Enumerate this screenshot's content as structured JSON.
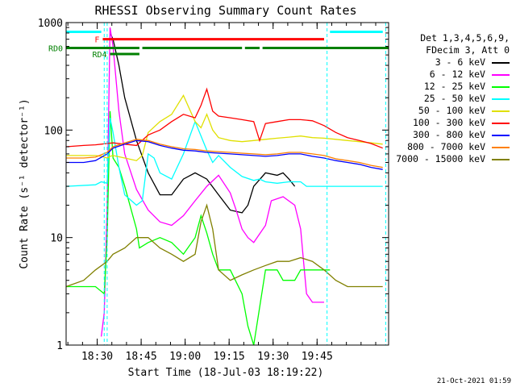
{
  "chart_data": {
    "type": "line",
    "title": "RHESSI Observing Summary Count Rates",
    "xlabel": "Start Time (18-Jul-03 18:19:22)",
    "ylabel": "Count Rate (s⁻¹ detector⁻¹)",
    "yscale": "log",
    "ylim": [
      1,
      1000
    ],
    "xlim_minutes": [
      0,
      110
    ],
    "x_unit": "minutes after 18:19:22",
    "ytick_labels": [
      "1",
      "10",
      "100",
      "1000"
    ],
    "xtick_labels": [
      "18:30",
      "18:45",
      "19:00",
      "19:15",
      "19:30",
      "19:45"
    ],
    "xtick_minutes": [
      10.6,
      25.6,
      40.6,
      55.6,
      70.6,
      85.6
    ],
    "legend_header": [
      "Det 1,3,4,5,6,9,",
      "FDecim 3, Att 0"
    ],
    "series": [
      {
        "name": "3 - 6 keV",
        "color": "#000000",
        "x": [
          0,
          8,
          10,
          12,
          14,
          15,
          16,
          18,
          20,
          24,
          28,
          32,
          36,
          40,
          44,
          48,
          52,
          56,
          60,
          62,
          64,
          68,
          72,
          74,
          76,
          78
        ],
        "y": [
          null,
          null,
          null,
          null,
          null,
          800,
          700,
          400,
          200,
          80,
          40,
          25,
          25,
          35,
          40,
          35,
          25,
          18,
          17,
          20,
          30,
          40,
          38,
          40,
          35,
          30
        ]
      },
      {
        "name": "6 - 12 keV",
        "color": "#ff00ff",
        "x": [
          0,
          10,
          12,
          13,
          14,
          15,
          16,
          18,
          20,
          24,
          28,
          32,
          36,
          40,
          44,
          48,
          52,
          56,
          58,
          60,
          62,
          64,
          68,
          70,
          74,
          78,
          80,
          81,
          82,
          84,
          88,
          90
        ],
        "y": [
          null,
          null,
          1.2,
          2,
          20,
          900,
          600,
          150,
          60,
          28,
          18,
          14,
          13,
          16,
          22,
          30,
          38,
          26,
          18,
          12,
          10,
          9,
          13,
          22,
          24,
          20,
          12,
          6,
          3,
          2.5,
          2.5,
          null
        ]
      },
      {
        "name": "12 - 25 keV",
        "color": "#00ff00",
        "x": [
          0,
          10,
          13,
          14,
          15,
          16,
          18,
          20,
          24,
          25,
          28,
          32,
          36,
          40,
          44,
          46,
          48,
          50,
          52,
          56,
          60,
          62,
          64,
          68,
          72,
          74,
          78,
          80,
          82,
          84,
          86,
          88,
          90
        ],
        "y": [
          3.5,
          3.5,
          3,
          10,
          150,
          55,
          45,
          30,
          12,
          8,
          9,
          10,
          9,
          7,
          10,
          16,
          11,
          7,
          5,
          5,
          3,
          1.5,
          1,
          5,
          5,
          4,
          4,
          5,
          5,
          5,
          5,
          5,
          5
        ]
      },
      {
        "name": "25 - 50 keV",
        "color": "#00ffff",
        "x": [
          0,
          10,
          12,
          14,
          15,
          16,
          18,
          20,
          24,
          26,
          28,
          30,
          32,
          36,
          40,
          44,
          48,
          50,
          52,
          56,
          60,
          64,
          66,
          68,
          72,
          76,
          80,
          82,
          84,
          86,
          88,
          92,
          96,
          100,
          104,
          108
        ],
        "y": [
          30,
          31,
          33,
          32,
          130,
          95,
          45,
          25,
          20,
          22,
          60,
          55,
          40,
          35,
          60,
          120,
          65,
          50,
          58,
          45,
          37,
          34,
          35,
          33,
          32,
          33,
          33,
          30,
          30,
          30,
          30,
          30,
          30,
          30,
          30,
          30
        ]
      },
      {
        "name": "50 - 100 keV",
        "color": "#e0e000",
        "x": [
          0,
          10,
          12,
          14,
          15,
          16,
          20,
          24,
          26,
          28,
          32,
          36,
          40,
          44,
          46,
          48,
          50,
          52,
          56,
          60,
          64,
          68,
          72,
          76,
          80,
          84,
          88,
          92,
          96,
          100,
          104,
          108
        ],
        "y": [
          58,
          58,
          57,
          55,
          57,
          58,
          55,
          52,
          58,
          95,
          120,
          140,
          210,
          120,
          105,
          140,
          100,
          85,
          80,
          78,
          80,
          82,
          84,
          86,
          88,
          85,
          84,
          82,
          80,
          78,
          76,
          74
        ]
      },
      {
        "name": "100 - 300 keV",
        "color": "#ff0000",
        "x": [
          0,
          6,
          10,
          14,
          16,
          20,
          24,
          28,
          30,
          32,
          36,
          40,
          44,
          46,
          48,
          50,
          52,
          56,
          60,
          64,
          66,
          68,
          72,
          76,
          80,
          84,
          88,
          92,
          96,
          100,
          104,
          108
        ],
        "y": [
          70,
          72,
          73,
          75,
          76,
          74,
          72,
          90,
          95,
          100,
          120,
          140,
          130,
          170,
          240,
          150,
          135,
          130,
          125,
          120,
          80,
          115,
          120,
          125,
          125,
          122,
          110,
          95,
          85,
          80,
          75,
          68
        ]
      },
      {
        "name": "300 - 800 keV",
        "color": "#0000ff",
        "x": [
          0,
          6,
          10,
          14,
          16,
          20,
          24,
          28,
          32,
          36,
          40,
          44,
          48,
          52,
          56,
          60,
          64,
          68,
          72,
          76,
          80,
          84,
          88,
          92,
          96,
          100,
          104,
          108
        ],
        "y": [
          50,
          50,
          52,
          60,
          68,
          74,
          80,
          78,
          72,
          68,
          65,
          64,
          62,
          61,
          60,
          59,
          58,
          57,
          58,
          60,
          60,
          57,
          55,
          52,
          50,
          48,
          45,
          43
        ]
      },
      {
        "name": "800 - 7000 keV",
        "color": "#ff8000",
        "x": [
          0,
          6,
          10,
          14,
          16,
          20,
          24,
          28,
          32,
          36,
          40,
          44,
          48,
          52,
          56,
          60,
          64,
          68,
          72,
          76,
          80,
          84,
          88,
          92,
          96,
          100,
          104,
          108
        ],
        "y": [
          55,
          55,
          56,
          62,
          70,
          76,
          82,
          80,
          74,
          70,
          67,
          66,
          64,
          63,
          62,
          61,
          60,
          59,
          60,
          62,
          62,
          60,
          58,
          54,
          52,
          50,
          47,
          45
        ]
      },
      {
        "name": "7000 - 15000 keV",
        "color": "#808000",
        "x": [
          0,
          6,
          10,
          14,
          16,
          20,
          24,
          28,
          32,
          36,
          40,
          44,
          46,
          48,
          50,
          52,
          56,
          60,
          64,
          68,
          72,
          76,
          80,
          84,
          88,
          92,
          96,
          100,
          104,
          108
        ],
        "y": [
          3.5,
          4,
          5,
          6,
          7,
          8,
          10,
          10,
          8,
          7,
          6,
          7,
          14,
          20,
          12,
          5,
          4,
          4.5,
          5,
          5.5,
          6,
          6,
          6.5,
          6,
          5,
          4,
          3.5,
          3.5,
          3.5,
          3.5
        ]
      }
    ],
    "flag_bars": [
      {
        "label": "",
        "color": "#00ffff",
        "y": 820,
        "x_start": 0,
        "x_end": 12
      },
      {
        "label": "",
        "color": "#00ffff",
        "y": 820,
        "x_start": 90,
        "x_end": 108
      },
      {
        "label": "F",
        "color": "#ff0000",
        "y": 700,
        "x_start": 12.5,
        "x_end": 88
      },
      {
        "label": "RD0",
        "color": "#008000",
        "y": 580,
        "x_start": 0,
        "x_end": 25
      },
      {
        "label": "",
        "color": "#008000",
        "y": 580,
        "x_start": 26,
        "x_end": 60
      },
      {
        "label": "",
        "color": "#008000",
        "y": 580,
        "x_start": 61,
        "x_end": 66
      },
      {
        "label": "",
        "color": "#008000",
        "y": 580,
        "x_start": 67,
        "x_end": 110
      },
      {
        "label": "RD4",
        "color": "#008000",
        "y": 510,
        "x_start": 15,
        "x_end": 25
      }
    ],
    "vlines_cyan_x": [
      13,
      14,
      89,
      109
    ]
  },
  "timestamp": "21-Oct-2021 01:59"
}
